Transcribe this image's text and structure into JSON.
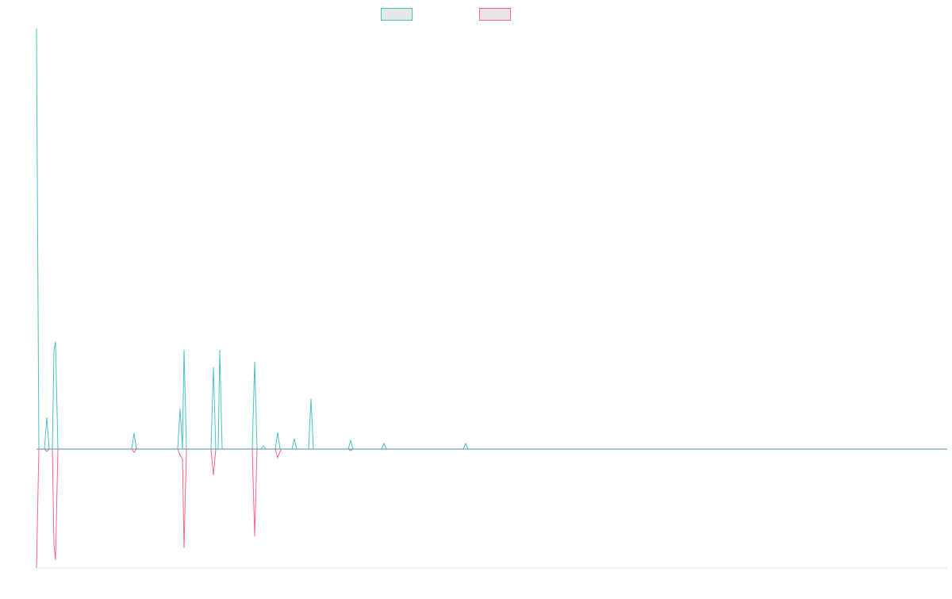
{
  "chart_data": {
    "type": "line",
    "title": "",
    "xlabel": "",
    "ylabel": "",
    "legend": "top-center",
    "grid": false,
    "colors": {
      "series_a": "#4bc0c0",
      "series_b": "#ff6384",
      "baseline": "#6aa3b8",
      "bottom_axis": "#e6e6e6"
    },
    "ylim": [
      -150,
      530
    ],
    "xlim": [
      0,
      1148
    ],
    "series": [
      {
        "color": "#4bc0c0",
        "points": [
          [
            0,
            530
          ],
          [
            3,
            0
          ],
          [
            10,
            0
          ],
          [
            13,
            40
          ],
          [
            16,
            0
          ],
          [
            20,
            0
          ],
          [
            22,
            124
          ],
          [
            24,
            135
          ],
          [
            27,
            0
          ],
          [
            120,
            0
          ],
          [
            123,
            20
          ],
          [
            126,
            0
          ],
          [
            178,
            0
          ],
          [
            181,
            51
          ],
          [
            184,
            0
          ],
          [
            186,
            125
          ],
          [
            189,
            0
          ],
          [
            220,
            0
          ],
          [
            223,
            103
          ],
          [
            226,
            0
          ],
          [
            229,
            0
          ],
          [
            231,
            125
          ],
          [
            234,
            0
          ],
          [
            272,
            0
          ],
          [
            275,
            110
          ],
          [
            278,
            0
          ],
          [
            283,
            0
          ],
          [
            286,
            4
          ],
          [
            289,
            0
          ],
          [
            301,
            0
          ],
          [
            304,
            21
          ],
          [
            307,
            0
          ],
          [
            309,
            0
          ],
          [
            322,
            0
          ],
          [
            325,
            13
          ],
          [
            328,
            0
          ],
          [
            343,
            0
          ],
          [
            346,
            63
          ],
          [
            349,
            0
          ],
          [
            393,
            0
          ],
          [
            396,
            11
          ],
          [
            399,
            0
          ],
          [
            435,
            0
          ],
          [
            438,
            7
          ],
          [
            441,
            0
          ],
          [
            538,
            0
          ],
          [
            541,
            7
          ],
          [
            544,
            0
          ],
          [
            1148,
            0
          ]
        ]
      },
      {
        "color": "#ff6384",
        "points": [
          [
            0,
            -150
          ],
          [
            3,
            0
          ],
          [
            10,
            0
          ],
          [
            13,
            -3
          ],
          [
            16,
            0
          ],
          [
            20,
            0
          ],
          [
            22,
            -120
          ],
          [
            24,
            -140
          ],
          [
            27,
            0
          ],
          [
            120,
            0
          ],
          [
            123,
            -4
          ],
          [
            126,
            0
          ],
          [
            178,
            0
          ],
          [
            181,
            -8
          ],
          [
            184,
            -12
          ],
          [
            186,
            -125
          ],
          [
            189,
            0
          ],
          [
            220,
            0
          ],
          [
            223,
            -33
          ],
          [
            226,
            0
          ],
          [
            272,
            0
          ],
          [
            275,
            -110
          ],
          [
            278,
            0
          ],
          [
            301,
            0
          ],
          [
            304,
            -11
          ],
          [
            307,
            -3
          ],
          [
            309,
            0
          ],
          [
            393,
            0
          ],
          [
            396,
            -2
          ],
          [
            399,
            0
          ],
          [
            1148,
            0
          ]
        ]
      }
    ]
  }
}
